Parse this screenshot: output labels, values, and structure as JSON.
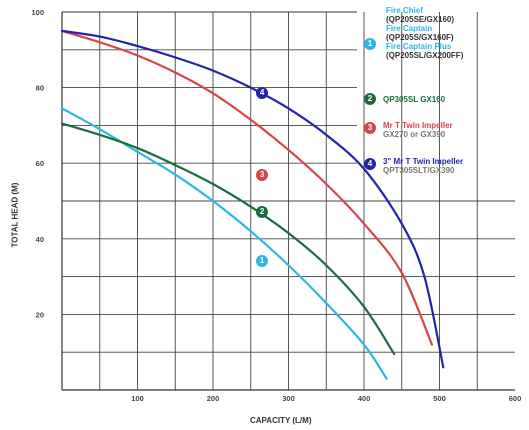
{
  "chart_data": {
    "type": "line",
    "xlabel": "CAPACITY (L/M)",
    "ylabel": "TOTAL HEAD (M)",
    "xlim": [
      0,
      600
    ],
    "ylim": [
      0,
      100
    ],
    "xticks": [
      "100",
      "200",
      "300",
      "400",
      "500",
      "600"
    ],
    "yticks": [
      "100",
      "80",
      "60",
      "40",
      "20"
    ],
    "grid": true,
    "series": [
      {
        "name": "Fire Chief / Fire Captain / Fire Captain Plus",
        "color": "#2cb7e3",
        "x": [
          0,
          50,
          100,
          150,
          200,
          250,
          300,
          350,
          400,
          430
        ],
        "y": [
          74.5,
          69,
          63,
          57,
          50,
          42,
          33,
          23,
          12,
          3
        ]
      },
      {
        "name": "QP305SL GX160",
        "color": "#1e6b42",
        "x": [
          0,
          50,
          100,
          150,
          200,
          250,
          300,
          350,
          400,
          440
        ],
        "y": [
          70.5,
          67.5,
          64,
          59.5,
          54.5,
          48.5,
          41.5,
          33,
          22,
          9.5
        ]
      },
      {
        "name": "Mr T Twin Impeller",
        "color": "#d8434c",
        "x": [
          0,
          50,
          100,
          150,
          200,
          250,
          300,
          350,
          400,
          450,
          490
        ],
        "y": [
          95,
          92,
          88.5,
          84,
          78.5,
          71.5,
          63.5,
          54.5,
          44,
          31,
          12
        ]
      },
      {
        "name": "3\" Mr T Twin Impeller",
        "color": "#2325a8",
        "x": [
          0,
          50,
          100,
          150,
          200,
          250,
          300,
          350,
          400,
          450,
          480,
          505
        ],
        "y": [
          95,
          93.5,
          91,
          88,
          84.5,
          80,
          74.5,
          67.5,
          58.5,
          44,
          30,
          6
        ]
      }
    ],
    "markers": [
      {
        "label": "1",
        "x": 265,
        "y": 34,
        "color": "#2cb7e3"
      },
      {
        "label": "2",
        "x": 265,
        "y": 47,
        "color": "#1e6b42"
      },
      {
        "label": "3",
        "x": 265,
        "y": 57,
        "color": "#d8434c"
      },
      {
        "label": "4",
        "x": 265,
        "y": 78.5,
        "color": "#2325a8"
      }
    ],
    "legend": {
      "entry1": {
        "badge": "1",
        "lines": [
          "Fire Chief",
          "(QP205SE/GX160)",
          "Fire Captain",
          "(QP205S/GX160F)",
          "Fire Captain Plus",
          "(QP205SL/GX200FF)"
        ]
      },
      "entry2": {
        "badge": "2",
        "line": "QP305SL GX160"
      },
      "entry3": {
        "badge": "3",
        "line1": "Mr T Twin Impeller",
        "line2": "GX270 or GX390"
      },
      "entry4": {
        "badge": "4",
        "line1": "3\" Mr T Twin Impeller",
        "line2": "QPT305SLT/GX390"
      }
    }
  }
}
